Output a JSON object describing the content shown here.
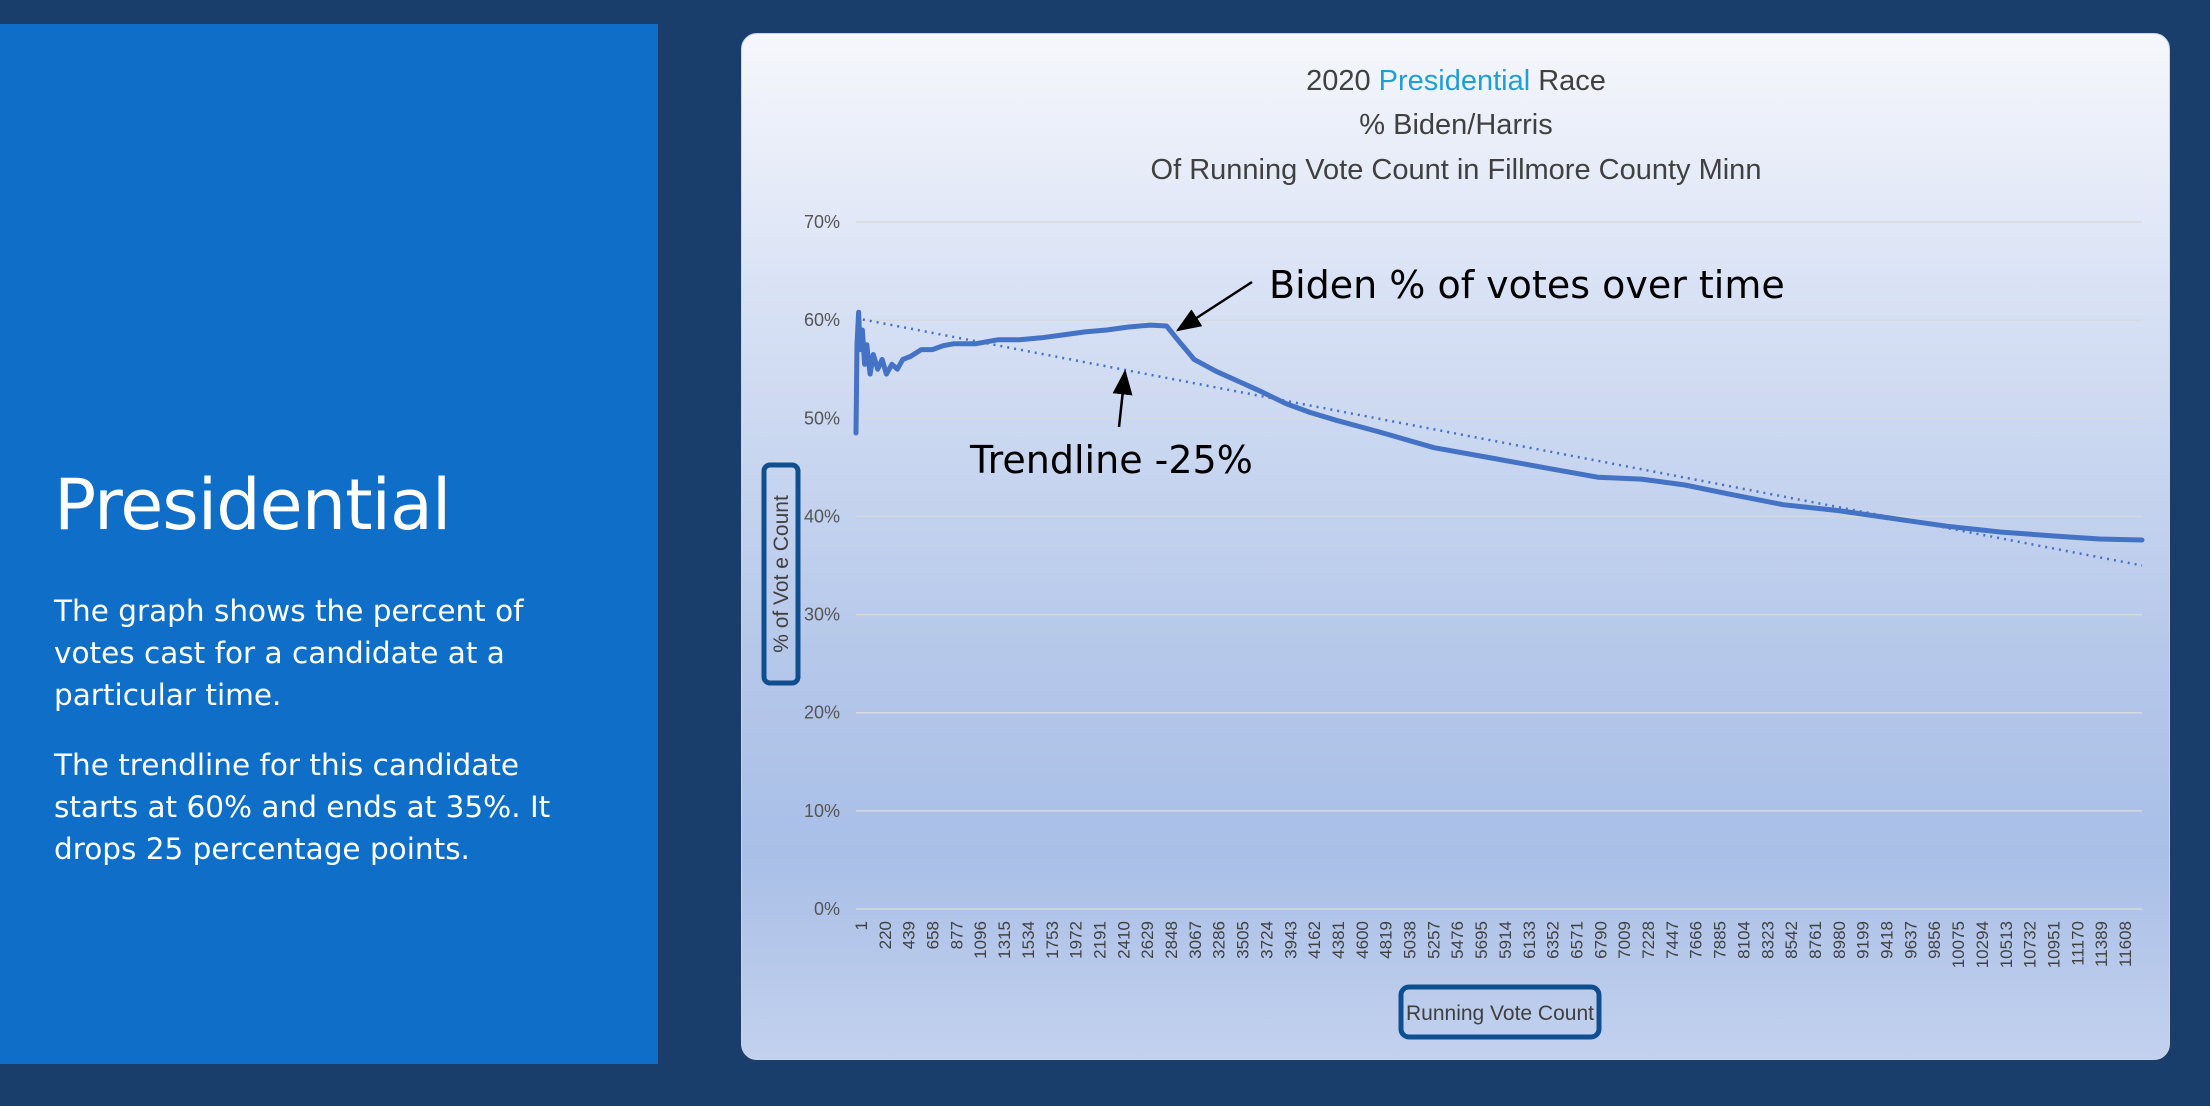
{
  "slide": {
    "title": "Presidential",
    "paragraph1": "The graph shows the percent of votes cast for a candidate at a particular time.",
    "paragraph2": "The trendline for this candidate starts at 60% and ends at 35%. It drops 25 percentage points."
  },
  "colors": {
    "background": "#1a3e6b",
    "panel": "#0f6ec8",
    "series": "#4472c4",
    "highlight": "#1f9fd3",
    "label_box": "#0f4f8f"
  },
  "chart_data": {
    "type": "line",
    "title_parts": [
      "2020 ",
      "Presidential",
      " Race"
    ],
    "subtitle1": "% Biden/Harris",
    "subtitle2": "Of Running Vote Count in Fillmore County Minn",
    "xlabel": "Running Vote Count",
    "ylabel": "% of Vot e Count",
    "ylim": [
      0,
      70
    ],
    "xlim": [
      1,
      11790
    ],
    "y_ticks": [
      "0%",
      "10%",
      "20%",
      "30%",
      "40%",
      "50%",
      "60%",
      "70%"
    ],
    "x_ticks": [
      "1",
      "220",
      "439",
      "658",
      "877",
      "1096",
      "1315",
      "1534",
      "1753",
      "1972",
      "2191",
      "2410",
      "2629",
      "2848",
      "3067",
      "3286",
      "3505",
      "3724",
      "3943",
      "4162",
      "4381",
      "4600",
      "4819",
      "5038",
      "5257",
      "5476",
      "5695",
      "5914",
      "6133",
      "6352",
      "6571",
      "6790",
      "7009",
      "7228",
      "7447",
      "7666",
      "7885",
      "8104",
      "8323",
      "8542",
      "8761",
      "8980",
      "9199",
      "9418",
      "9637",
      "9856",
      "10075",
      "10294",
      "10513",
      "10732",
      "10951",
      "11170",
      "11389",
      "11608"
    ],
    "series": [
      {
        "name": "Biden % of votes over time",
        "x": [
          1,
          10,
          25,
          40,
          60,
          80,
          100,
          130,
          160,
          200,
          240,
          280,
          330,
          380,
          430,
          500,
          600,
          700,
          800,
          900,
          1000,
          1100,
          1300,
          1500,
          1700,
          1900,
          2100,
          2300,
          2500,
          2700,
          2848,
          2950,
          3100,
          3300,
          3500,
          3700,
          3943,
          4162,
          4400,
          4800,
          5300,
          5800,
          6300,
          6800,
          7200,
          7600,
          8000,
          8500,
          9000,
          9500,
          10000,
          10500,
          11000,
          11400,
          11790
        ],
        "values": [
          48.5,
          57.5,
          60.8,
          57.0,
          59.0,
          55.5,
          57.5,
          54.5,
          56.5,
          55.0,
          56.0,
          54.5,
          55.5,
          55.0,
          56.0,
          56.3,
          57.0,
          57.0,
          57.4,
          57.6,
          57.6,
          57.6,
          58.0,
          58.0,
          58.2,
          58.5,
          58.8,
          59.0,
          59.3,
          59.5,
          59.4,
          58.0,
          56.0,
          54.8,
          53.8,
          52.8,
          51.5,
          50.6,
          49.8,
          48.6,
          47.0,
          46.0,
          45.0,
          44.0,
          43.8,
          43.2,
          42.3,
          41.2,
          40.6,
          39.8,
          39.0,
          38.4,
          38.0,
          37.7,
          37.6
        ]
      },
      {
        "name": "Trendline",
        "x": [
          1,
          11790
        ],
        "values": [
          60.2,
          35.0
        ]
      }
    ],
    "annotations": [
      {
        "text": "Biden % of votes over time",
        "target_x": 2848,
        "target_y": 59.4
      },
      {
        "text": "Trendline -25%",
        "target_x": 2500,
        "target_y": 55.2
      }
    ]
  }
}
